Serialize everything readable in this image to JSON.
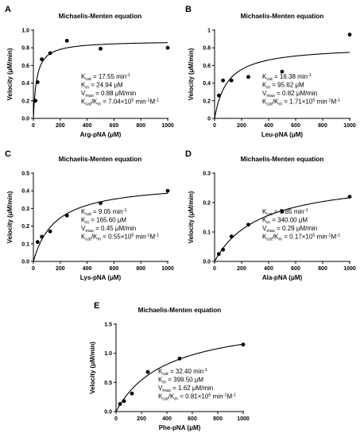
{
  "chart_data": [
    {
      "type": "scatter",
      "panel_label": "A",
      "title": "Michaelis-Menten equation",
      "xlabel": "Arg-pNA (μM)",
      "ylabel": "Velocity (μM/min)",
      "xlim": [
        0,
        1000
      ],
      "ylim": [
        0,
        1.0
      ],
      "xticks": [
        0,
        200,
        400,
        600,
        800,
        1000
      ],
      "yticks": [
        0.0,
        0.2,
        0.4,
        0.6,
        0.8,
        1.0
      ],
      "ytick_labels": [
        "0.0",
        "0.2",
        "0.4",
        "0.6",
        "0.8",
        "1.0"
      ],
      "fit": {
        "model": "michaelis-menten",
        "vmax": 0.88,
        "km": 24.94
      },
      "series": [
        {
          "x": [
            15.6,
            31.25,
            62.5,
            125,
            250,
            500,
            1000
          ],
          "y": [
            0.2,
            0.41,
            0.67,
            0.74,
            0.88,
            0.79,
            0.8
          ]
        }
      ],
      "annotation": {
        "kcat": {
          "label": "K",
          "sub": "cat",
          "text": " = 17.55 min",
          "sup": "-1"
        },
        "km": {
          "label": "K",
          "sub": "m",
          "text": " = 24.94 μM"
        },
        "vmax": {
          "label": "V",
          "sub": "max",
          "text": " = 0.88 μM/min"
        },
        "ratio": {
          "l1": "K",
          "s1": "cat",
          "l2": "/K",
          "s2": "m",
          "t1": " = 7.04×10",
          "e1": "5",
          "t2": " min",
          "e2": "-1",
          "t3": "M",
          "e3": "-1"
        }
      }
    },
    {
      "type": "scatter",
      "panel_label": "B",
      "title": "Michaelis-Menten equation",
      "xlabel": "Leu-pNA (μM)",
      "ylabel": "Velocity (μM/min)",
      "xlim": [
        0,
        1000
      ],
      "ylim": [
        0,
        1.0
      ],
      "xticks": [
        0,
        200,
        400,
        600,
        800,
        1000
      ],
      "yticks": [
        0.0,
        0.2,
        0.4,
        0.6,
        0.8,
        1.0
      ],
      "ytick_labels": [
        "0",
        "0.2",
        "0.4",
        "0.6",
        "0.8",
        "1"
      ],
      "fit": {
        "model": "michaelis-menten",
        "vmax": 0.82,
        "km": 95.62
      },
      "series": [
        {
          "x": [
            31.25,
            62.5,
            125,
            250,
            500,
            1000
          ],
          "y": [
            0.26,
            0.43,
            0.43,
            0.47,
            0.53,
            0.95
          ]
        }
      ],
      "annotation": {
        "kcat": {
          "label": "K",
          "sub": "cat",
          "text": " = 16.38 min",
          "sup": "-1"
        },
        "km": {
          "label": "K",
          "sub": "m",
          "text": " = 95.62 μM"
        },
        "vmax": {
          "label": "V",
          "sub": "max",
          "text": " = 0.82 μM/min"
        },
        "ratio": {
          "l1": "K",
          "s1": "cat",
          "l2": "/K",
          "s2": "m",
          "t1": " = 1.71×10",
          "e1": "5",
          "t2": " min",
          "e2": "-1",
          "t3": "M",
          "e3": "-1"
        }
      }
    },
    {
      "type": "scatter",
      "panel_label": "C",
      "title": "Michaelis-Menten equation",
      "xlabel": "Lys-pNA (μM)",
      "ylabel": "Velocity (μM/min)",
      "xlim": [
        0,
        1000
      ],
      "ylim": [
        0,
        0.5
      ],
      "xticks": [
        0,
        200,
        400,
        600,
        800,
        1000
      ],
      "yticks": [
        0.0,
        0.1,
        0.2,
        0.3,
        0.4,
        0.5
      ],
      "ytick_labels": [
        "0.0",
        "0.1",
        "0.2",
        "0.3",
        "0.4",
        "0.5"
      ],
      "fit": {
        "model": "michaelis-menten",
        "vmax": 0.45,
        "km": 165.6
      },
      "series": [
        {
          "x": [
            31.25,
            62.5,
            125,
            250,
            500,
            1000
          ],
          "y": [
            0.11,
            0.14,
            0.17,
            0.26,
            0.33,
            0.4
          ]
        }
      ],
      "annotation": {
        "kcat": {
          "label": "K",
          "sub": "cat",
          "text": " = 9.05 min",
          "sup": "-1"
        },
        "km": {
          "label": "K",
          "sub": "m",
          "text": " = 165.60 μM"
        },
        "vmax": {
          "label": "V",
          "sub": "max",
          "text": " = 0.45 μM/min"
        },
        "ratio": {
          "l1": "K",
          "s1": "cat",
          "l2": "/K",
          "s2": "m",
          "t1": " = 0.55×10",
          "e1": "5",
          "t2": " min",
          "e2": "-1",
          "t3": "M",
          "e3": "-1"
        }
      }
    },
    {
      "type": "scatter",
      "panel_label": "D",
      "title": "Michaelis-Menten equation",
      "xlabel": "Ala-pNA (μM)",
      "ylabel": "Velocity (μM/min)",
      "xlim": [
        0,
        1000
      ],
      "ylim": [
        0,
        0.3
      ],
      "xticks": [
        0,
        200,
        400,
        600,
        800,
        1000
      ],
      "yticks": [
        0.0,
        0.1,
        0.2,
        0.3
      ],
      "ytick_labels": [
        "0.0",
        "0.1",
        "0.2",
        "0.3"
      ],
      "fit": {
        "model": "michaelis-menten",
        "vmax": 0.29,
        "km": 340.0
      },
      "series": [
        {
          "x": [
            31.25,
            62.5,
            125,
            250,
            500,
            1000
          ],
          "y": [
            0.025,
            0.04,
            0.085,
            0.125,
            0.17,
            0.22
          ]
        }
      ],
      "annotation": {
        "kcat": {
          "label": "K",
          "sub": "cat",
          "text": " = 5.85 min",
          "sup": "-1"
        },
        "km": {
          "label": "K",
          "sub": "m",
          "text": " = 340.00 μM"
        },
        "vmax": {
          "label": "V",
          "sub": "max",
          "text": " = 0.29 μM/min"
        },
        "ratio": {
          "l1": "K",
          "s1": "cat",
          "l2": "/K",
          "s2": "m",
          "t1": " = 0.17×10",
          "e1": "5",
          "t2": " min",
          "e2": "-1",
          "t3": "M",
          "e3": "-1"
        }
      }
    },
    {
      "type": "scatter",
      "panel_label": "E",
      "title": "Michaelis-Menten equation",
      "xlabel": "Phe-pNA (μM)",
      "ylabel": "Velocity (μM/min)",
      "xlim": [
        0,
        1000
      ],
      "ylim": [
        0,
        1.5
      ],
      "xticks": [
        0,
        200,
        400,
        600,
        800,
        1000
      ],
      "yticks": [
        0.0,
        0.5,
        1.0,
        1.5
      ],
      "ytick_labels": [
        "0.0",
        "0.5",
        "1.0",
        "1.5"
      ],
      "fit": {
        "model": "michaelis-menten",
        "vmax": 1.62,
        "km": 399.5
      },
      "series": [
        {
          "x": [
            31.25,
            62.5,
            125,
            250,
            500,
            1000
          ],
          "y": [
            0.13,
            0.18,
            0.31,
            0.68,
            0.91,
            1.15
          ]
        }
      ],
      "annotation": {
        "kcat": {
          "label": "K",
          "sub": "cat",
          "text": " = 32.40 min",
          "sup": "-1"
        },
        "km": {
          "label": "K",
          "sub": "m",
          "text": " = 399.50 μM"
        },
        "vmax": {
          "label": "V",
          "sub": "max",
          "text": " = 1.62 μM/min"
        },
        "ratio": {
          "l1": "K",
          "s1": "cat",
          "l2": "/K",
          "s2": "m",
          "t1": " = 0.81×10",
          "e1": "5",
          "t2": " min",
          "e2": "-1",
          "t3": "M",
          "e3": "-1"
        }
      }
    }
  ]
}
